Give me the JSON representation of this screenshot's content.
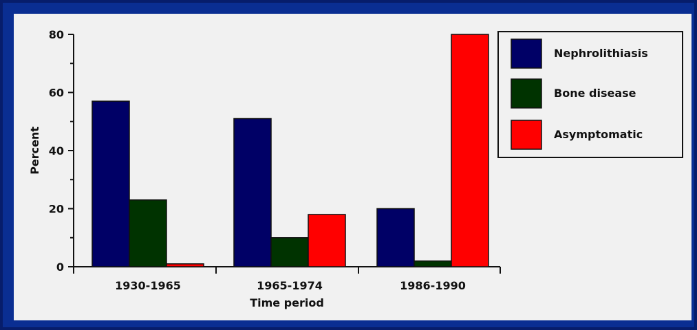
{
  "chart_data": {
    "type": "bar",
    "title": "",
    "xlabel": "Time period",
    "ylabel": "Percent",
    "ylim": [
      0,
      80
    ],
    "yticks": [
      0,
      20,
      40,
      60,
      80
    ],
    "categories": [
      "1930-1965",
      "1965-1974",
      "1986-1990"
    ],
    "series": [
      {
        "name": "Nephrolithiasis",
        "color": "#000066",
        "values": [
          57,
          51,
          20
        ]
      },
      {
        "name": "Bone disease",
        "color": "#003300",
        "values": [
          23,
          10,
          2
        ]
      },
      {
        "name": "Asymptomatic",
        "color": "#ff0000",
        "values": [
          1,
          18,
          80
        ]
      }
    ],
    "legend_position": "right",
    "grid": false
  }
}
